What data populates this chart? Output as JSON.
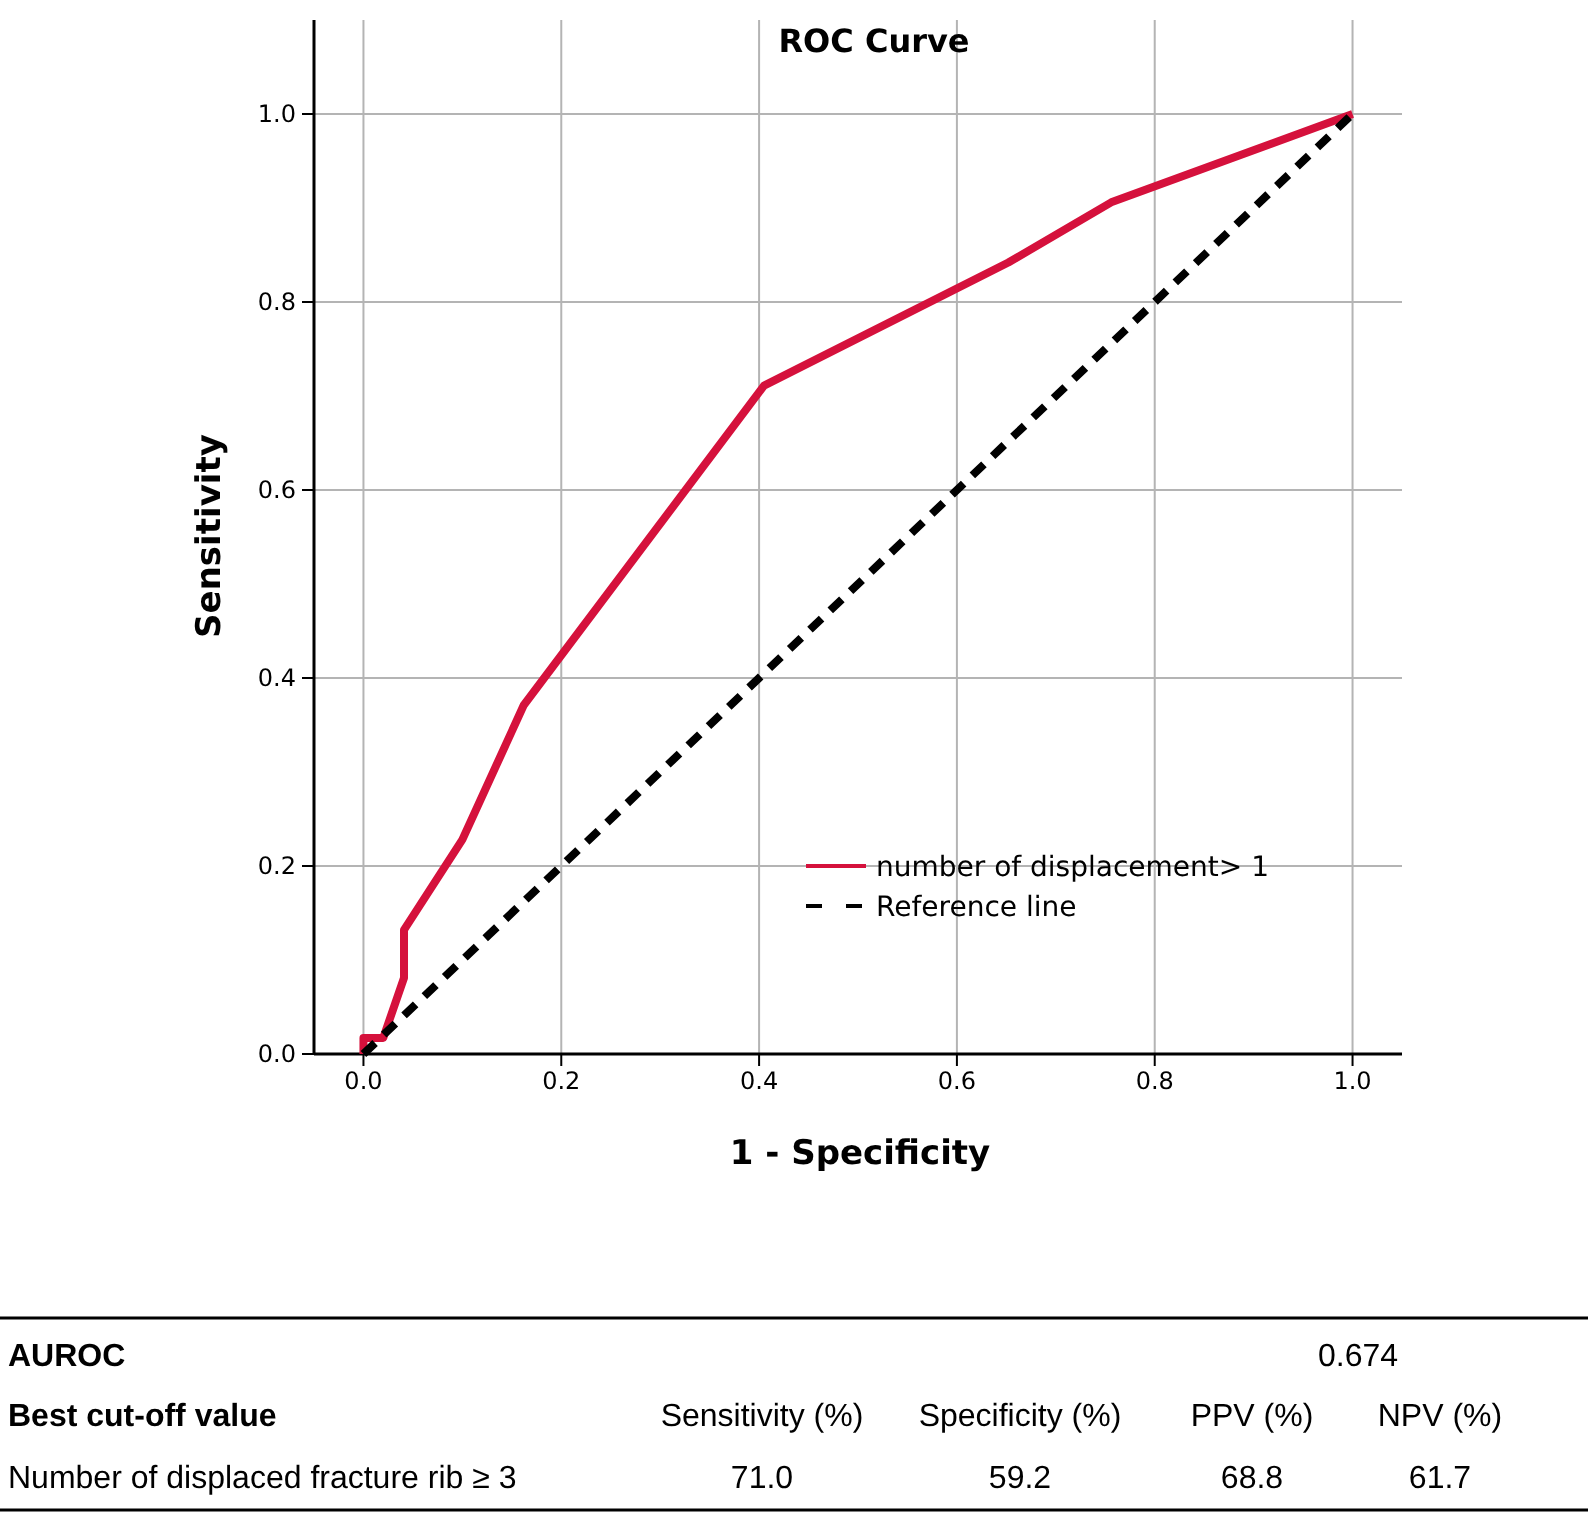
{
  "chart_data": [
    {
      "type": "line",
      "title": "ROC Curve",
      "xlabel": "1 - Specificity",
      "ylabel": "Sensitivity",
      "xlim": [
        -0.05,
        1.05
      ],
      "ylim": [
        0,
        1.1
      ],
      "xticks": [
        {
          "value": 0,
          "label": "0.0"
        },
        {
          "value": 0.2,
          "label": "0.2"
        },
        {
          "value": 0.4,
          "label": "0.4"
        },
        {
          "value": 0.6,
          "label": "0.6"
        },
        {
          "value": 0.8,
          "label": "0.8"
        },
        {
          "value": 1,
          "label": "1.0"
        }
      ],
      "yticks": [
        {
          "value": 0,
          "label": "0.0"
        },
        {
          "value": 0.2,
          "label": "0.2"
        },
        {
          "value": 0.4,
          "label": "0.4"
        },
        {
          "value": 0.6,
          "label": "0.6"
        },
        {
          "value": 0.8,
          "label": "0.8"
        },
        {
          "value": 1,
          "label": "1.0"
        }
      ],
      "grid": true,
      "legend": "bottom right",
      "marker": "none",
      "series": [
        {
          "name": "number of displacement> 1",
          "color": "#d5113c",
          "line_style": "solid",
          "x": [
            0,
            0,
            0.02,
            0.041,
            0.041,
            0.1,
            0.162,
            0.405,
            0.652,
            0.756,
            1
          ],
          "values": [
            0,
            0.017,
            0.017,
            0.081,
            0.132,
            0.228,
            0.371,
            0.711,
            0.842,
            0.906,
            1
          ]
        },
        {
          "name": "Reference line",
          "color": "#000000",
          "line_style": "dashed",
          "x": [
            0,
            1
          ],
          "values": [
            0,
            1
          ]
        }
      ]
    },
    {
      "type": "other",
      "annotations": [
        "AUROC",
        "0.674",
        "Best cut-off value",
        "Sensitivity (%)",
        "Specificity (%)",
        "PPV (%)",
        "NPV (%)",
        "Number of displaced fracture rib ≥ 3",
        "71.0",
        "59.2",
        "68.8",
        "61.7"
      ]
    }
  ]
}
